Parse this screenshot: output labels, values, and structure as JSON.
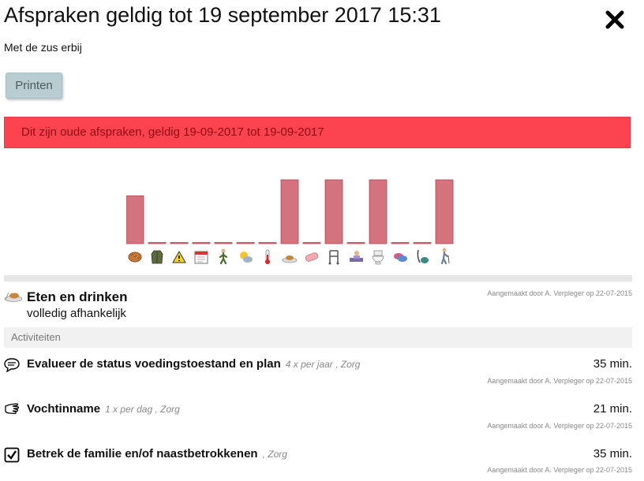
{
  "header": {
    "title": "Afspraken geldig tot 19 september 2017 15:31",
    "subtitle": "Met de zus erbij",
    "print_label": "Printen"
  },
  "alert": {
    "text": "Dit zijn oude afspraken, geldig 19-09-2017 tot 19-09-2017",
    "color": "#fc4350"
  },
  "chart_data": {
    "type": "bar",
    "bar_color": "#d4727d",
    "categories": [
      "bread-icon",
      "coat-icon",
      "warning-icon",
      "calendar-icon",
      "walking-person-icon",
      "sun-cloud-icon",
      "thermometer-icon",
      "meal-plate-icon",
      "pills-icon",
      "walker-icon",
      "person-bed-icon",
      "toilet-icon",
      "speech-bubbles-icon",
      "vacuum-cleaner-icon",
      "elderly-person-icon"
    ],
    "values": [
      3,
      0,
      0,
      0,
      0,
      0,
      0,
      4,
      0,
      4,
      0,
      4,
      0,
      0,
      4
    ],
    "ylim": [
      0,
      4
    ]
  },
  "section": {
    "icon": "meal-plate-icon",
    "title": "Eten en drinken",
    "status": "volledig afhankelijk",
    "created": "Aangemaakt door A. Verpleger op 22-07-2015"
  },
  "activities": {
    "header": "Activiteiten",
    "items": [
      {
        "icon": "speech-bubble-icon",
        "title": "Evalueer de status voedingstoestand en plan",
        "freq": "4 x per jaar , Zorg",
        "duration": "35 min.",
        "created": "Aangemaakt door A. Verpleger op 22-07-2015"
      },
      {
        "icon": "hand-icon",
        "title": "Vochtinname",
        "freq": "1 x per dag , Zorg",
        "duration": "21 min.",
        "created": "Aangemaakt door A. Verpleger op 22-07-2015"
      },
      {
        "icon": "checkbox-icon",
        "title": "Betrek de familie en/of naastbetrokkenen",
        "freq": ", Zorg",
        "duration": "35 min.",
        "created": "Aangemaakt door A. Verpleger op 22-07-2015"
      }
    ]
  }
}
